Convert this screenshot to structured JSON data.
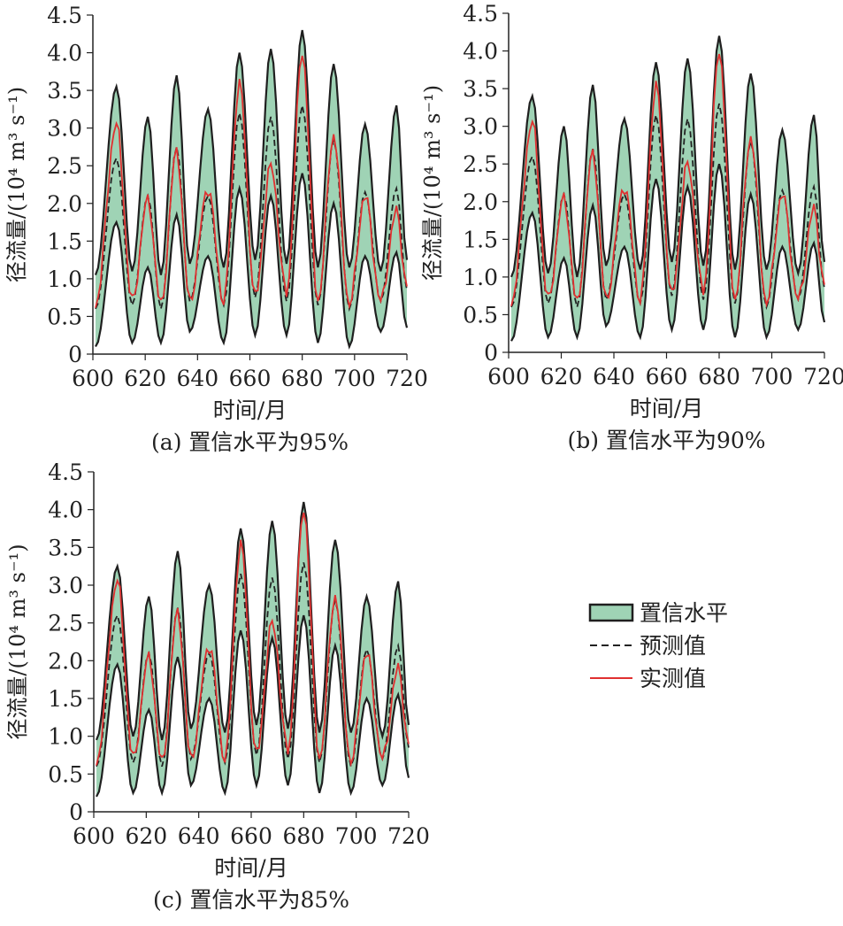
{
  "colors": {
    "band_fill": "#9fd3b5",
    "band_edge": "#1f1f1f",
    "predicted": "#222222",
    "observed": "#e03030"
  },
  "legend": {
    "items": [
      {
        "key": "band",
        "label": "置信水平"
      },
      {
        "key": "predicted",
        "label": "预测值"
      },
      {
        "key": "observed",
        "label": "实测值"
      }
    ]
  },
  "chart_data": [
    {
      "type": "area",
      "caption": "(a) 置信水平为95%",
      "xlabel": "时间/月",
      "ylabel": "径流量/(10⁴ m³ s⁻¹)",
      "xlim": [
        600,
        720
      ],
      "ylim": [
        0,
        4.5
      ],
      "xticks": [
        600,
        620,
        640,
        660,
        680,
        700,
        720
      ],
      "yticks": [
        0,
        0.5,
        1.0,
        1.5,
        2.0,
        2.5,
        3.0,
        3.5,
        4.0,
        4.5
      ],
      "x_range": [
        601,
        720
      ],
      "peaks": [
        {
          "x": 609,
          "upper": 3.55,
          "lower": 1.75,
          "predicted": 2.6,
          "observed": 3.05
        },
        {
          "x": 621,
          "upper": 3.15,
          "lower": 1.15,
          "predicted": 2.1,
          "observed": 2.05
        },
        {
          "x": 632,
          "upper": 3.7,
          "lower": 1.85,
          "predicted": 2.75,
          "observed": 2.7
        },
        {
          "x": 644,
          "upper": 3.25,
          "lower": 1.3,
          "predicted": 2.1,
          "observed": 2.2
        },
        {
          "x": 656,
          "upper": 4.0,
          "lower": 2.2,
          "predicted": 3.2,
          "observed": 3.6
        },
        {
          "x": 668,
          "upper": 4.05,
          "lower": 2.1,
          "predicted": 3.15,
          "observed": 2.5
        },
        {
          "x": 680,
          "upper": 4.3,
          "lower": 2.4,
          "predicted": 3.3,
          "observed": 4.0
        },
        {
          "x": 692,
          "upper": 3.85,
          "lower": 2.0,
          "predicted": 2.85,
          "observed": 2.9
        },
        {
          "x": 704,
          "upper": 3.05,
          "lower": 1.3,
          "predicted": 2.15,
          "observed": 2.1
        },
        {
          "x": 716,
          "upper": 3.3,
          "lower": 1.35,
          "predicted": 2.2,
          "observed": 1.9
        }
      ],
      "troughs": [
        {
          "x": 601,
          "upper": 1.05,
          "lower": 0.1,
          "predicted": 0.6,
          "observed": 0.65
        },
        {
          "x": 615,
          "upper": 1.1,
          "lower": 0.15,
          "predicted": 0.65,
          "observed": 0.7
        },
        {
          "x": 626,
          "upper": 1.05,
          "lower": 0.15,
          "predicted": 0.6,
          "observed": 0.65
        },
        {
          "x": 637,
          "upper": 1.2,
          "lower": 0.3,
          "predicted": 0.7,
          "observed": 0.7
        },
        {
          "x": 650,
          "upper": 1.15,
          "lower": 0.15,
          "predicted": 0.65,
          "observed": 0.7
        },
        {
          "x": 662,
          "upper": 1.25,
          "lower": 0.25,
          "predicted": 0.75,
          "observed": 0.75
        },
        {
          "x": 674,
          "upper": 1.2,
          "lower": 0.25,
          "predicted": 0.7,
          "observed": 0.8
        },
        {
          "x": 686,
          "upper": 1.15,
          "lower": 0.15,
          "predicted": 0.65,
          "observed": 0.7
        },
        {
          "x": 698,
          "upper": 1.15,
          "lower": 0.1,
          "predicted": 0.6,
          "observed": 0.65
        },
        {
          "x": 710,
          "upper": 1.1,
          "lower": 0.3,
          "predicted": 0.7,
          "observed": 0.7
        },
        {
          "x": 720,
          "upper": 1.25,
          "lower": 0.35,
          "predicted": 0.85,
          "observed": 0.9
        }
      ]
    },
    {
      "type": "area",
      "caption": "(b) 置信水平为90%",
      "xlabel": "时间/月",
      "ylabel": "径流量/(10⁴ m³ s⁻¹)",
      "xlim": [
        600,
        720
      ],
      "ylim": [
        0,
        4.5
      ],
      "xticks": [
        600,
        620,
        640,
        660,
        680,
        700,
        720
      ],
      "yticks": [
        0,
        0.5,
        1.0,
        1.5,
        2.0,
        2.5,
        3.0,
        3.5,
        4.0,
        4.5
      ],
      "x_range": [
        601,
        720
      ],
      "peaks": [
        {
          "x": 609,
          "upper": 3.4,
          "lower": 1.85,
          "predicted": 2.6,
          "observed": 3.05
        },
        {
          "x": 621,
          "upper": 3.0,
          "lower": 1.25,
          "predicted": 2.1,
          "observed": 2.05
        },
        {
          "x": 632,
          "upper": 3.55,
          "lower": 1.95,
          "predicted": 2.7,
          "observed": 2.65
        },
        {
          "x": 644,
          "upper": 3.1,
          "lower": 1.4,
          "predicted": 2.1,
          "observed": 2.2
        },
        {
          "x": 656,
          "upper": 3.85,
          "lower": 2.3,
          "predicted": 3.15,
          "observed": 3.55
        },
        {
          "x": 668,
          "upper": 3.9,
          "lower": 2.2,
          "predicted": 3.1,
          "observed": 2.5
        },
        {
          "x": 680,
          "upper": 4.2,
          "lower": 2.5,
          "predicted": 3.3,
          "observed": 4.0
        },
        {
          "x": 692,
          "upper": 3.7,
          "lower": 2.1,
          "predicted": 2.8,
          "observed": 2.85
        },
        {
          "x": 704,
          "upper": 2.95,
          "lower": 1.4,
          "predicted": 2.15,
          "observed": 2.1
        },
        {
          "x": 716,
          "upper": 3.15,
          "lower": 1.45,
          "predicted": 2.2,
          "observed": 1.9
        }
      ],
      "troughs": [
        {
          "x": 601,
          "upper": 1.0,
          "lower": 0.15,
          "predicted": 0.6,
          "observed": 0.65
        },
        {
          "x": 615,
          "upper": 1.05,
          "lower": 0.2,
          "predicted": 0.65,
          "observed": 0.7
        },
        {
          "x": 626,
          "upper": 1.0,
          "lower": 0.2,
          "predicted": 0.6,
          "observed": 0.65
        },
        {
          "x": 637,
          "upper": 1.15,
          "lower": 0.35,
          "predicted": 0.7,
          "observed": 0.7
        },
        {
          "x": 650,
          "upper": 1.1,
          "lower": 0.2,
          "predicted": 0.65,
          "observed": 0.7
        },
        {
          "x": 662,
          "upper": 1.2,
          "lower": 0.3,
          "predicted": 0.75,
          "observed": 0.75
        },
        {
          "x": 674,
          "upper": 1.15,
          "lower": 0.3,
          "predicted": 0.7,
          "observed": 0.8
        },
        {
          "x": 686,
          "upper": 1.1,
          "lower": 0.2,
          "predicted": 0.65,
          "observed": 0.7
        },
        {
          "x": 698,
          "upper": 1.1,
          "lower": 0.2,
          "predicted": 0.6,
          "observed": 0.65
        },
        {
          "x": 710,
          "upper": 1.05,
          "lower": 0.3,
          "predicted": 0.7,
          "observed": 0.7
        },
        {
          "x": 720,
          "upper": 1.2,
          "lower": 0.4,
          "predicted": 0.85,
          "observed": 0.9
        }
      ]
    },
    {
      "type": "area",
      "caption": "(c) 置信水平为85%",
      "xlabel": "时间/月",
      "ylabel": "径流量/(10⁴ m³ s⁻¹)",
      "xlim": [
        600,
        720
      ],
      "ylim": [
        0,
        4.5
      ],
      "xticks": [
        600,
        620,
        640,
        660,
        680,
        700,
        720
      ],
      "yticks": [
        0,
        0.5,
        1.0,
        1.5,
        2.0,
        2.5,
        3.0,
        3.5,
        4.0,
        4.5
      ],
      "x_range": [
        601,
        720
      ],
      "peaks": [
        {
          "x": 609,
          "upper": 3.25,
          "lower": 1.95,
          "predicted": 2.6,
          "observed": 3.05
        },
        {
          "x": 621,
          "upper": 2.85,
          "lower": 1.35,
          "predicted": 2.1,
          "observed": 2.05
        },
        {
          "x": 632,
          "upper": 3.45,
          "lower": 2.05,
          "predicted": 2.7,
          "observed": 2.65
        },
        {
          "x": 644,
          "upper": 3.0,
          "lower": 1.5,
          "predicted": 2.1,
          "observed": 2.2
        },
        {
          "x": 656,
          "upper": 3.75,
          "lower": 2.4,
          "predicted": 3.15,
          "observed": 3.55
        },
        {
          "x": 668,
          "upper": 3.85,
          "lower": 2.3,
          "predicted": 3.1,
          "observed": 2.5
        },
        {
          "x": 680,
          "upper": 4.1,
          "lower": 2.6,
          "predicted": 3.3,
          "observed": 4.0
        },
        {
          "x": 692,
          "upper": 3.6,
          "lower": 2.2,
          "predicted": 2.8,
          "observed": 2.85
        },
        {
          "x": 704,
          "upper": 2.85,
          "lower": 1.5,
          "predicted": 2.15,
          "observed": 2.1
        },
        {
          "x": 716,
          "upper": 3.05,
          "lower": 1.55,
          "predicted": 2.2,
          "observed": 1.9
        }
      ],
      "troughs": [
        {
          "x": 601,
          "upper": 0.95,
          "lower": 0.2,
          "predicted": 0.6,
          "observed": 0.65
        },
        {
          "x": 615,
          "upper": 1.0,
          "lower": 0.25,
          "predicted": 0.65,
          "observed": 0.7
        },
        {
          "x": 626,
          "upper": 0.95,
          "lower": 0.25,
          "predicted": 0.6,
          "observed": 0.65
        },
        {
          "x": 637,
          "upper": 1.1,
          "lower": 0.35,
          "predicted": 0.7,
          "observed": 0.7
        },
        {
          "x": 650,
          "upper": 1.05,
          "lower": 0.25,
          "predicted": 0.65,
          "observed": 0.7
        },
        {
          "x": 662,
          "upper": 1.15,
          "lower": 0.35,
          "predicted": 0.75,
          "observed": 0.75
        },
        {
          "x": 674,
          "upper": 1.1,
          "lower": 0.35,
          "predicted": 0.7,
          "observed": 0.8
        },
        {
          "x": 686,
          "upper": 1.05,
          "lower": 0.25,
          "predicted": 0.65,
          "observed": 0.7
        },
        {
          "x": 698,
          "upper": 1.05,
          "lower": 0.25,
          "predicted": 0.6,
          "observed": 0.65
        },
        {
          "x": 710,
          "upper": 1.0,
          "lower": 0.35,
          "predicted": 0.7,
          "observed": 0.7
        },
        {
          "x": 720,
          "upper": 1.15,
          "lower": 0.45,
          "predicted": 0.85,
          "observed": 0.9
        }
      ]
    }
  ]
}
